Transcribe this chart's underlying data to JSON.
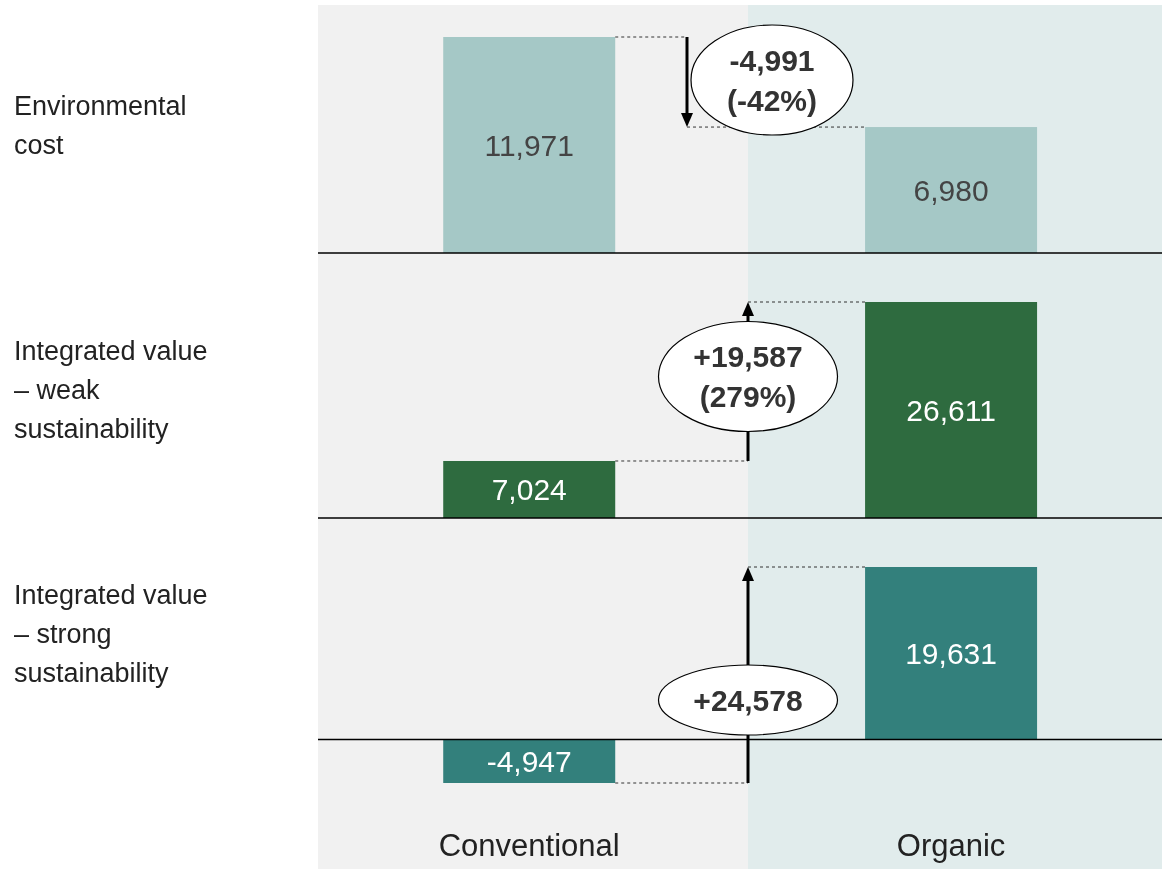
{
  "chart_data": [
    {
      "type": "bar",
      "title": "Environmental cost",
      "categories": [
        null,
        null
      ],
      "values": [
        11971,
        6980
      ],
      "color": "#a5c8c6",
      "value_labels": [
        "11,971",
        "6,980"
      ],
      "annotations": [
        "-4,991 (-42%)"
      ]
    },
    {
      "type": "bar",
      "title": "Integrated value – weak sustainability",
      "categories": [
        null,
        null
      ],
      "values": [
        7024,
        26611
      ],
      "color": "#2e6b3f",
      "value_labels": [
        "7,024",
        "26,611"
      ],
      "annotations": [
        "+19,587 (279%)"
      ]
    },
    {
      "type": "bar",
      "title": "Integrated value – strong sustainability",
      "categories": [
        "Conventional",
        "Organic"
      ],
      "values": [
        -4947,
        19631
      ],
      "color": "#33807c",
      "value_labels": [
        "-4,947",
        "19,631"
      ],
      "annotations": [
        "+24,578"
      ]
    }
  ]
}
